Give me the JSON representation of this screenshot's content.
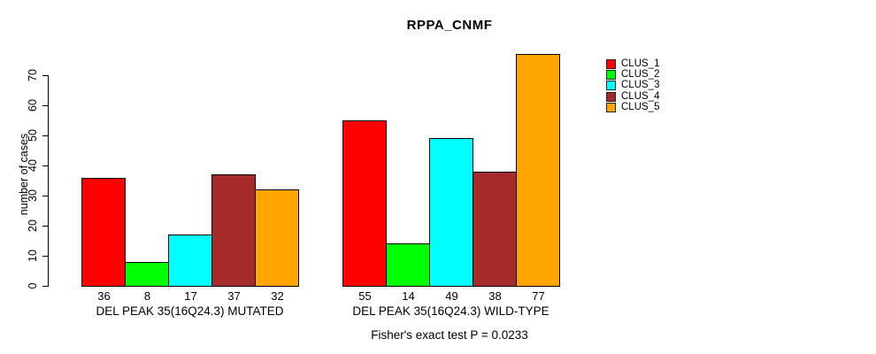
{
  "figure": {
    "title": "RPPA_CNMF",
    "footnote": "Fisher's exact test P = 0.0233"
  },
  "chart_data": {
    "type": "bar",
    "title": "RPPA_CNMF",
    "ylabel": "number of cases",
    "xlabel": "",
    "annotation": "Fisher's exact test P = 0.0233",
    "ylim": [
      0,
      77
    ],
    "yticks": [
      0,
      10,
      20,
      30,
      40,
      50,
      60,
      70
    ],
    "grid": false,
    "legend_position": "top-right",
    "bar_border_color": "#000000",
    "categories": [
      "DEL PEAK 35(16Q24.3) MUTATED",
      "DEL PEAK 35(16Q24.3) WILD-TYPE"
    ],
    "series": [
      {
        "name": "CLUS_1",
        "color": "#ff0000",
        "values": [
          36,
          55
        ]
      },
      {
        "name": "CLUS_2",
        "color": "#00ff00",
        "values": [
          8,
          14
        ]
      },
      {
        "name": "CLUS_3",
        "color": "#00ffff",
        "values": [
          17,
          49
        ]
      },
      {
        "name": "CLUS_4",
        "color": "#a52a2a",
        "values": [
          37,
          38
        ]
      },
      {
        "name": "CLUS_5",
        "color": "#ffa500",
        "values": [
          32,
          77
        ]
      }
    ],
    "groups": [
      {
        "label": "DEL PEAK 35(16Q24.3) MUTATED",
        "values": [
          36,
          8,
          17,
          37,
          32
        ]
      },
      {
        "label": "DEL PEAK 35(16Q24.3) WILD-TYPE",
        "values": [
          55,
          14,
          49,
          38,
          77
        ]
      }
    ],
    "bar_value_labels_shown": true
  }
}
